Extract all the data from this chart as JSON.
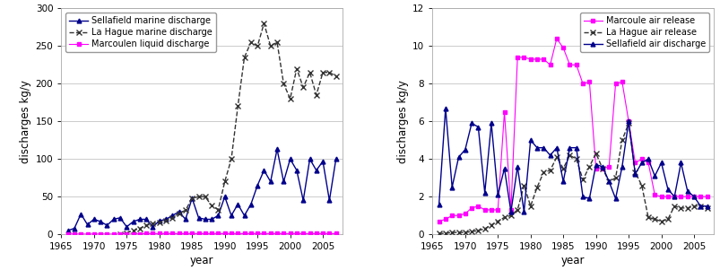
{
  "left": {
    "ylabel": "discharges kg/y",
    "xlabel": "year",
    "ylim": [
      0,
      300
    ],
    "xlim": [
      1965,
      2008
    ],
    "yticks": [
      0,
      50,
      100,
      150,
      200,
      250,
      300
    ],
    "xticks": [
      1965,
      1970,
      1975,
      1980,
      1985,
      1990,
      1995,
      2000,
      2005
    ],
    "sellafield_marine": {
      "years": [
        1966,
        1967,
        1968,
        1969,
        1970,
        1971,
        1972,
        1973,
        1974,
        1975,
        1976,
        1977,
        1978,
        1979,
        1980,
        1981,
        1982,
        1983,
        1984,
        1985,
        1986,
        1987,
        1988,
        1989,
        1990,
        1991,
        1992,
        1993,
        1994,
        1995,
        1996,
        1997,
        1998,
        1999,
        2000,
        2001,
        2002,
        2003,
        2004,
        2005,
        2006,
        2007
      ],
      "values": [
        5,
        8,
        27,
        13,
        20,
        17,
        12,
        20,
        22,
        10,
        17,
        20,
        20,
        10,
        18,
        20,
        25,
        30,
        20,
        48,
        22,
        20,
        20,
        25,
        50,
        25,
        40,
        25,
        40,
        65,
        85,
        70,
        113,
        70,
        100,
        85,
        45,
        100,
        85,
        97,
        45,
        100
      ],
      "color": "#00008B",
      "marker": "^",
      "markersize": 3.5,
      "linestyle": "-",
      "linewidth": 1.0,
      "label": "Sellafield marine discharge"
    },
    "lahague_marine": {
      "years": [
        1974,
        1975,
        1976,
        1977,
        1978,
        1979,
        1980,
        1981,
        1982,
        1983,
        1984,
        1985,
        1986,
        1987,
        1988,
        1989,
        1990,
        1991,
        1992,
        1993,
        1994,
        1995,
        1996,
        1997,
        1998,
        1999,
        2000,
        2001,
        2002,
        2003,
        2004,
        2005,
        2006,
        2007
      ],
      "values": [
        0,
        2,
        5,
        8,
        12,
        14,
        16,
        18,
        22,
        28,
        32,
        48,
        50,
        50,
        38,
        33,
        70,
        100,
        170,
        235,
        255,
        250,
        280,
        250,
        255,
        200,
        180,
        220,
        195,
        215,
        185,
        215,
        215,
        210
      ],
      "color": "#333333",
      "marker": "x",
      "markersize": 5,
      "linestyle": "--",
      "linewidth": 1.0,
      "label": "La Hague marine discharge"
    },
    "marcoule_liquid": {
      "years": [
        1966,
        1967,
        1968,
        1969,
        1970,
        1971,
        1972,
        1973,
        1974,
        1975,
        1976,
        1977,
        1978,
        1979,
        1980,
        1981,
        1982,
        1983,
        1984,
        1985,
        1986,
        1987,
        1988,
        1989,
        1990,
        1991,
        1992,
        1993,
        1994,
        1995,
        1996,
        1997,
        1998,
        1999,
        2000,
        2001,
        2002,
        2003,
        2004,
        2005,
        2006,
        2007
      ],
      "values": [
        0.3,
        0.3,
        0.3,
        0.3,
        0.3,
        0.3,
        0.3,
        0.3,
        0.3,
        0.3,
        0.3,
        0.8,
        1.0,
        1.0,
        1.0,
        1.0,
        1.0,
        1.0,
        1.0,
        1.0,
        1.0,
        1.0,
        1.0,
        1.0,
        1.0,
        1.0,
        1.0,
        1.0,
        1.0,
        1.0,
        1.0,
        1.0,
        1.0,
        1.0,
        1.0,
        1.0,
        1.0,
        1.0,
        1.0,
        1.0,
        1.0,
        1.0
      ],
      "color": "#ff00ff",
      "marker": "s",
      "markersize": 3,
      "linestyle": "-",
      "linewidth": 0.8,
      "label": "Marcoulen liquid discharge"
    }
  },
  "right": {
    "ylabel": "discharges kg/y",
    "xlabel": "year",
    "ylim": [
      0,
      12
    ],
    "xlim": [
      1965,
      2008
    ],
    "yticks": [
      0,
      2,
      4,
      6,
      8,
      10,
      12
    ],
    "xticks": [
      1965,
      1970,
      1975,
      1980,
      1985,
      1990,
      1995,
      2000,
      2005
    ],
    "sellafield_air": {
      "years": [
        1966,
        1967,
        1968,
        1969,
        1970,
        1971,
        1972,
        1973,
        1974,
        1975,
        1976,
        1977,
        1978,
        1979,
        1980,
        1981,
        1982,
        1983,
        1984,
        1985,
        1986,
        1987,
        1988,
        1989,
        1990,
        1991,
        1992,
        1993,
        1994,
        1995,
        1996,
        1997,
        1998,
        1999,
        2000,
        2001,
        2002,
        2003,
        2004,
        2005,
        2006,
        2007
      ],
      "values": [
        1.6,
        6.7,
        2.5,
        4.1,
        4.5,
        5.9,
        5.7,
        2.2,
        5.9,
        2.1,
        3.5,
        1.2,
        3.6,
        1.2,
        5.0,
        4.6,
        4.6,
        4.2,
        4.6,
        2.8,
        4.6,
        4.6,
        2.0,
        1.9,
        3.7,
        3.6,
        2.8,
        1.9,
        3.6,
        6.0,
        3.2,
        3.8,
        4.0,
        3.1,
        3.8,
        2.4,
        2.0,
        3.8,
        2.3,
        2.0,
        1.5,
        1.5
      ],
      "color": "#00008B",
      "marker": "^",
      "markersize": 3.5,
      "linestyle": "-",
      "linewidth": 1.0,
      "label": "Sellafield air discharge"
    },
    "lahague_air": {
      "years": [
        1966,
        1967,
        1968,
        1969,
        1970,
        1971,
        1972,
        1973,
        1974,
        1975,
        1976,
        1977,
        1978,
        1979,
        1980,
        1981,
        1982,
        1983,
        1984,
        1985,
        1986,
        1987,
        1988,
        1989,
        1990,
        1991,
        1992,
        1993,
        1994,
        1995,
        1996,
        1997,
        1998,
        1999,
        2000,
        2001,
        2002,
        2003,
        2004,
        2005,
        2006,
        2007
      ],
      "values": [
        0.05,
        0.05,
        0.1,
        0.1,
        0.1,
        0.15,
        0.2,
        0.3,
        0.5,
        0.7,
        0.9,
        1.0,
        1.3,
        2.6,
        1.5,
        2.5,
        3.3,
        3.4,
        4.1,
        3.5,
        4.2,
        4.0,
        2.9,
        3.6,
        4.3,
        3.5,
        2.8,
        3.0,
        5.0,
        5.9,
        3.3,
        2.6,
        0.9,
        0.8,
        0.7,
        0.8,
        1.5,
        1.4,
        1.4,
        1.5,
        1.5,
        1.4
      ],
      "color": "#333333",
      "marker": "x",
      "markersize": 5,
      "linestyle": "--",
      "linewidth": 1.0,
      "label": "La Hague air release"
    },
    "marcoule_air": {
      "years": [
        1966,
        1967,
        1968,
        1969,
        1970,
        1971,
        1972,
        1973,
        1974,
        1975,
        1976,
        1977,
        1978,
        1979,
        1980,
        1981,
        1982,
        1983,
        1984,
        1985,
        1986,
        1987,
        1988,
        1989,
        1990,
        1991,
        1992,
        1993,
        1994,
        1995,
        1996,
        1997,
        1998,
        1999,
        2000,
        2001,
        2002,
        2003,
        2004,
        2005,
        2006,
        2007
      ],
      "values": [
        0.7,
        0.8,
        1.0,
        1.0,
        1.1,
        1.4,
        1.5,
        1.3,
        1.3,
        1.3,
        6.5,
        1.3,
        9.4,
        9.4,
        9.3,
        9.3,
        9.3,
        9.0,
        10.4,
        9.9,
        9.0,
        9.0,
        8.0,
        8.1,
        3.5,
        3.5,
        3.6,
        8.0,
        8.1,
        6.0,
        3.8,
        4.0,
        3.8,
        2.1,
        2.0,
        2.0,
        2.0,
        2.0,
        2.0,
        2.0,
        2.0,
        2.0
      ],
      "color": "#ff00ff",
      "marker": "s",
      "markersize": 3,
      "linestyle": "-",
      "linewidth": 0.8,
      "label": "Marcoule air release"
    }
  },
  "bg_color": "#ffffff",
  "plot_bg_color": "#ffffff",
  "grid_color": "#cccccc",
  "fontsize": 7.0,
  "tick_fontsize": 7.5,
  "axis_label_fontsize": 8.5
}
